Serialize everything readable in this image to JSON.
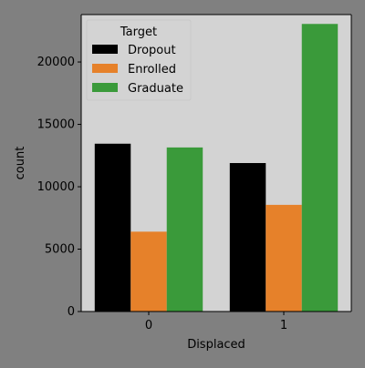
{
  "chart_data": {
    "type": "bar",
    "xlabel": "Displaced",
    "ylabel": "count",
    "categories": [
      "0",
      "1"
    ],
    "series": [
      {
        "name": "Dropout",
        "color": "#000000",
        "values": [
          13450,
          11900
        ]
      },
      {
        "name": "Enrolled",
        "color": "#e6812a",
        "values": [
          6400,
          8550
        ]
      },
      {
        "name": "Graduate",
        "color": "#3a9a3a",
        "values": [
          13150,
          23050
        ]
      }
    ],
    "ylim": [
      0,
      23800
    ],
    "yticks": [
      0,
      5000,
      10000,
      15000,
      20000
    ],
    "legend": {
      "title": "Target",
      "placement": "top-left"
    },
    "grid": false,
    "colors": {
      "figure_bg": "#808080",
      "axes_bg": "#d3d3d3"
    }
  }
}
